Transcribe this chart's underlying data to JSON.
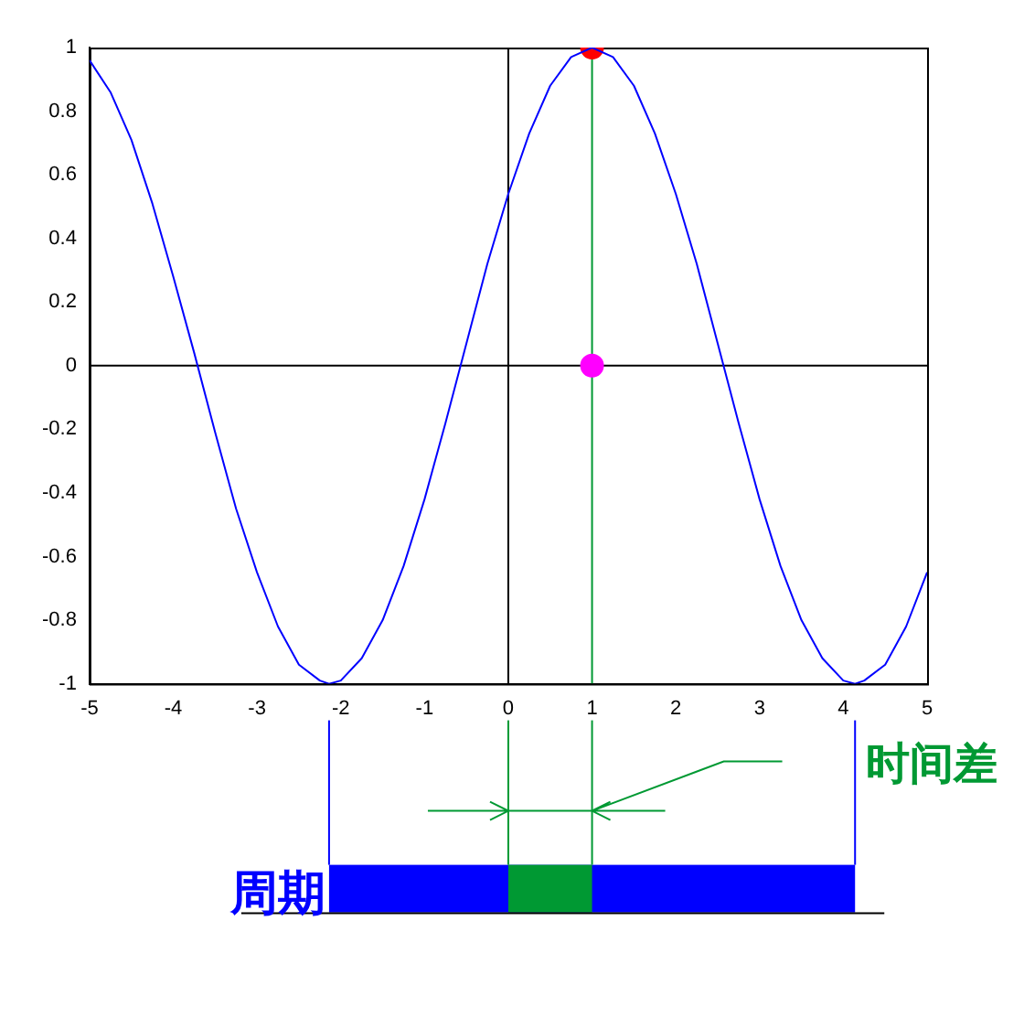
{
  "chart_data": {
    "type": "line",
    "x": [
      -5,
      -4.75,
      -4.5,
      -4.25,
      -4,
      -3.75,
      -3.5,
      -3.25,
      -3,
      -2.75,
      -2.5,
      -2.25,
      -2.14,
      -2,
      -1.75,
      -1.5,
      -1.25,
      -1,
      -0.75,
      -0.5,
      -0.25,
      0,
      0.25,
      0.5,
      0.75,
      1,
      1.25,
      1.5,
      1.75,
      2,
      2.25,
      2.5,
      2.75,
      3,
      3.25,
      3.5,
      3.75,
      4,
      4.14,
      4.25,
      4.5,
      4.75,
      5
    ],
    "series": [
      {
        "color": "#0000ff",
        "marker": "none",
        "values": [
          0.96,
          0.86,
          0.71,
          0.51,
          0.28,
          0.04,
          -0.21,
          -0.45,
          -0.65,
          -0.82,
          -0.94,
          -0.99,
          -1,
          -0.99,
          -0.92,
          -0.8,
          -0.63,
          -0.42,
          -0.18,
          0.07,
          0.32,
          0.54,
          0.73,
          0.88,
          0.97,
          1,
          0.97,
          0.88,
          0.73,
          0.54,
          0.32,
          0.07,
          -0.18,
          -0.42,
          -0.63,
          -0.8,
          -0.92,
          -0.99,
          -1,
          -0.99,
          -0.94,
          -0.82,
          -0.65
        ]
      },
      {
        "type": "scatter",
        "x": [
          1
        ],
        "color": "#ff0000",
        "marker": "circle",
        "values": [
          1
        ]
      },
      {
        "type": "scatter",
        "x": [
          1
        ],
        "color": "#ff00ff",
        "marker": "circle",
        "values": [
          0
        ]
      }
    ],
    "xlim": [
      -5,
      5
    ],
    "xticks": [
      -5,
      -4,
      -3,
      -2,
      -1,
      0,
      1,
      2,
      3,
      4,
      5
    ],
    "ylim": [
      -1,
      1
    ],
    "yticks": [
      -1,
      -0.8,
      -0.6,
      -0.4,
      -0.2,
      0,
      0.2,
      0.4,
      0.6,
      0.8,
      1
    ],
    "grid": false,
    "legend": false,
    "ref_lines": [
      {
        "axis": "x",
        "value": 0,
        "color": "#000000"
      },
      {
        "axis": "y",
        "value": 0,
        "color": "#000000"
      },
      {
        "axis": "x",
        "value": 1,
        "color": "#009933"
      }
    ],
    "annotations": [
      "周期",
      "时间差"
    ]
  }
}
